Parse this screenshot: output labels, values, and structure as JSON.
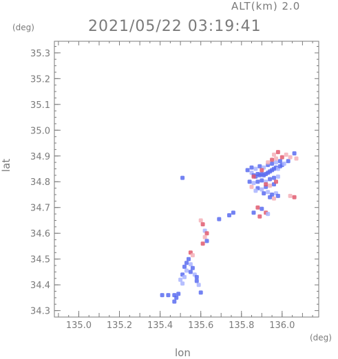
{
  "header": {
    "altitude_label": "ALT(km) 2.0",
    "datetime": "2021/05/22 03:19:41"
  },
  "chart_data": {
    "type": "scatter",
    "title": "2021/05/22 03:19:41",
    "xlabel": "lon",
    "ylabel": "lat",
    "x_unit": "(deg)",
    "y_unit": "(deg)",
    "xlim": [
      134.88,
      136.18
    ],
    "ylim": [
      34.275,
      35.345
    ],
    "x_ticks": [
      135.0,
      135.2,
      135.4,
      135.6,
      135.8,
      136.0
    ],
    "x_tick_labels": [
      "135.0",
      "135.2",
      "135.4",
      "135.6",
      "135.8",
      "136.0"
    ],
    "y_ticks": [
      34.3,
      34.4,
      34.5,
      34.6,
      34.7,
      34.8,
      34.9,
      35.0,
      35.1,
      35.2,
      35.3
    ],
    "y_tick_labels": [
      "34.3",
      "34.4",
      "34.5",
      "34.6",
      "34.7",
      "34.8",
      "34.9",
      "35.0",
      "35.1",
      "35.2",
      "35.3"
    ],
    "grid": false,
    "colors": {
      "blue": "#5b6cf0",
      "light_blue": "#a9b4ff",
      "red": "#e05a6e",
      "pink": "#f4b0b8"
    },
    "points": [
      {
        "x": 135.51,
        "y": 34.815,
        "c": "blue"
      },
      {
        "x": 135.83,
        "y": 34.845,
        "c": "blue"
      },
      {
        "x": 135.85,
        "y": 34.835,
        "c": "light_blue"
      },
      {
        "x": 135.86,
        "y": 34.825,
        "c": "blue"
      },
      {
        "x": 135.87,
        "y": 34.82,
        "c": "blue"
      },
      {
        "x": 135.88,
        "y": 34.83,
        "c": "blue"
      },
      {
        "x": 135.89,
        "y": 34.825,
        "c": "blue"
      },
      {
        "x": 135.9,
        "y": 34.83,
        "c": "blue"
      },
      {
        "x": 135.91,
        "y": 34.825,
        "c": "blue"
      },
      {
        "x": 135.92,
        "y": 34.83,
        "c": "blue"
      },
      {
        "x": 135.93,
        "y": 34.835,
        "c": "blue"
      },
      {
        "x": 135.94,
        "y": 34.84,
        "c": "blue"
      },
      {
        "x": 135.95,
        "y": 34.845,
        "c": "blue"
      },
      {
        "x": 135.96,
        "y": 34.85,
        "c": "blue"
      },
      {
        "x": 135.97,
        "y": 34.855,
        "c": "blue"
      },
      {
        "x": 135.98,
        "y": 34.85,
        "c": "light_blue"
      },
      {
        "x": 135.99,
        "y": 34.86,
        "c": "blue"
      },
      {
        "x": 136.0,
        "y": 34.865,
        "c": "blue"
      },
      {
        "x": 136.01,
        "y": 34.87,
        "c": "light_blue"
      },
      {
        "x": 136.03,
        "y": 34.88,
        "c": "blue"
      },
      {
        "x": 136.06,
        "y": 34.91,
        "c": "blue"
      },
      {
        "x": 136.07,
        "y": 34.89,
        "c": "pink"
      },
      {
        "x": 135.85,
        "y": 34.855,
        "c": "blue"
      },
      {
        "x": 135.87,
        "y": 34.85,
        "c": "light_blue"
      },
      {
        "x": 135.89,
        "y": 34.86,
        "c": "blue"
      },
      {
        "x": 135.91,
        "y": 34.855,
        "c": "light_blue"
      },
      {
        "x": 135.93,
        "y": 34.865,
        "c": "blue"
      },
      {
        "x": 135.95,
        "y": 34.87,
        "c": "blue"
      },
      {
        "x": 135.97,
        "y": 34.875,
        "c": "light_blue"
      },
      {
        "x": 135.99,
        "y": 34.88,
        "c": "blue"
      },
      {
        "x": 135.84,
        "y": 34.8,
        "c": "blue"
      },
      {
        "x": 135.86,
        "y": 34.795,
        "c": "light_blue"
      },
      {
        "x": 135.88,
        "y": 34.8,
        "c": "blue"
      },
      {
        "x": 135.9,
        "y": 34.805,
        "c": "blue"
      },
      {
        "x": 135.92,
        "y": 34.8,
        "c": "light_blue"
      },
      {
        "x": 135.94,
        "y": 34.81,
        "c": "blue"
      },
      {
        "x": 135.96,
        "y": 34.815,
        "c": "blue"
      },
      {
        "x": 135.98,
        "y": 34.82,
        "c": "light_blue"
      },
      {
        "x": 135.88,
        "y": 34.775,
        "c": "blue"
      },
      {
        "x": 135.9,
        "y": 34.77,
        "c": "light_blue"
      },
      {
        "x": 135.92,
        "y": 34.78,
        "c": "blue"
      },
      {
        "x": 135.94,
        "y": 34.785,
        "c": "pink"
      },
      {
        "x": 135.96,
        "y": 34.79,
        "c": "blue"
      },
      {
        "x": 135.91,
        "y": 34.755,
        "c": "blue"
      },
      {
        "x": 135.93,
        "y": 34.76,
        "c": "light_blue"
      },
      {
        "x": 135.95,
        "y": 34.75,
        "c": "blue"
      },
      {
        "x": 135.97,
        "y": 34.755,
        "c": "light_blue"
      },
      {
        "x": 135.94,
        "y": 34.74,
        "c": "blue"
      },
      {
        "x": 135.96,
        "y": 34.735,
        "c": "pink"
      },
      {
        "x": 135.98,
        "y": 34.745,
        "c": "blue"
      },
      {
        "x": 135.95,
        "y": 34.885,
        "c": "red"
      },
      {
        "x": 135.97,
        "y": 34.89,
        "c": "pink"
      },
      {
        "x": 135.93,
        "y": 34.875,
        "c": "pink"
      },
      {
        "x": 136.0,
        "y": 34.895,
        "c": "red"
      },
      {
        "x": 135.96,
        "y": 34.905,
        "c": "pink"
      },
      {
        "x": 135.98,
        "y": 34.915,
        "c": "red"
      },
      {
        "x": 136.02,
        "y": 34.905,
        "c": "pink"
      },
      {
        "x": 136.04,
        "y": 34.895,
        "c": "pink"
      },
      {
        "x": 135.9,
        "y": 34.845,
        "c": "red"
      },
      {
        "x": 135.86,
        "y": 34.82,
        "c": "red"
      },
      {
        "x": 135.92,
        "y": 34.79,
        "c": "red"
      },
      {
        "x": 135.97,
        "y": 34.8,
        "c": "red"
      },
      {
        "x": 135.85,
        "y": 34.78,
        "c": "pink"
      },
      {
        "x": 135.87,
        "y": 34.765,
        "c": "light_blue"
      },
      {
        "x": 136.06,
        "y": 34.74,
        "c": "red"
      },
      {
        "x": 136.04,
        "y": 34.745,
        "c": "pink"
      },
      {
        "x": 135.88,
        "y": 34.7,
        "c": "red"
      },
      {
        "x": 135.9,
        "y": 34.695,
        "c": "blue"
      },
      {
        "x": 135.92,
        "y": 34.68,
        "c": "red"
      },
      {
        "x": 135.93,
        "y": 34.675,
        "c": "light_blue"
      },
      {
        "x": 135.86,
        "y": 34.68,
        "c": "blue"
      },
      {
        "x": 135.89,
        "y": 34.665,
        "c": "red"
      },
      {
        "x": 135.76,
        "y": 34.68,
        "c": "blue"
      },
      {
        "x": 135.74,
        "y": 34.67,
        "c": "blue"
      },
      {
        "x": 135.69,
        "y": 34.655,
        "c": "blue"
      },
      {
        "x": 135.6,
        "y": 34.65,
        "c": "pink"
      },
      {
        "x": 135.61,
        "y": 34.635,
        "c": "red"
      },
      {
        "x": 135.62,
        "y": 34.61,
        "c": "light_blue"
      },
      {
        "x": 135.63,
        "y": 34.6,
        "c": "red"
      },
      {
        "x": 135.62,
        "y": 34.585,
        "c": "pink"
      },
      {
        "x": 135.63,
        "y": 34.57,
        "c": "blue"
      },
      {
        "x": 135.61,
        "y": 34.56,
        "c": "red"
      },
      {
        "x": 135.55,
        "y": 34.525,
        "c": "red"
      },
      {
        "x": 135.56,
        "y": 34.515,
        "c": "pink"
      },
      {
        "x": 135.54,
        "y": 34.5,
        "c": "blue"
      },
      {
        "x": 135.53,
        "y": 34.485,
        "c": "blue"
      },
      {
        "x": 135.55,
        "y": 34.48,
        "c": "light_blue"
      },
      {
        "x": 135.52,
        "y": 34.47,
        "c": "blue"
      },
      {
        "x": 135.56,
        "y": 34.465,
        "c": "blue"
      },
      {
        "x": 135.53,
        "y": 34.455,
        "c": "light_blue"
      },
      {
        "x": 135.55,
        "y": 34.45,
        "c": "blue"
      },
      {
        "x": 135.51,
        "y": 34.44,
        "c": "blue"
      },
      {
        "x": 135.57,
        "y": 34.44,
        "c": "light_blue"
      },
      {
        "x": 135.52,
        "y": 34.43,
        "c": "light_blue"
      },
      {
        "x": 135.58,
        "y": 34.43,
        "c": "blue"
      },
      {
        "x": 135.5,
        "y": 34.42,
        "c": "light_blue"
      },
      {
        "x": 135.58,
        "y": 34.415,
        "c": "blue"
      },
      {
        "x": 135.51,
        "y": 34.405,
        "c": "light_blue"
      },
      {
        "x": 135.59,
        "y": 34.4,
        "c": "light_blue"
      },
      {
        "x": 135.6,
        "y": 34.37,
        "c": "blue"
      },
      {
        "x": 135.47,
        "y": 34.36,
        "c": "blue"
      },
      {
        "x": 135.48,
        "y": 34.35,
        "c": "blue"
      },
      {
        "x": 135.47,
        "y": 34.335,
        "c": "blue"
      },
      {
        "x": 135.41,
        "y": 34.36,
        "c": "blue"
      },
      {
        "x": 135.44,
        "y": 34.36,
        "c": "blue"
      },
      {
        "x": 135.49,
        "y": 34.365,
        "c": "blue"
      }
    ]
  }
}
